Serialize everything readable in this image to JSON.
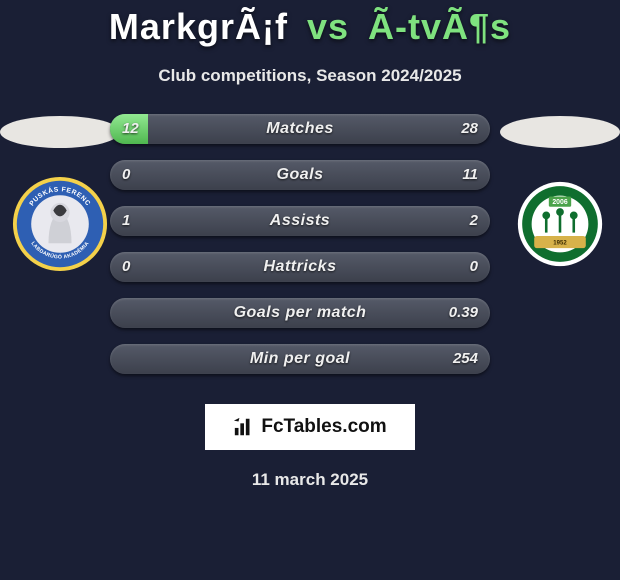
{
  "background_color": "#1a1f35",
  "title": {
    "player1": "MarkgrÃ¡f",
    "vs": "vs",
    "player2": "Ã-tvÃ¶s",
    "player1_color": "#ffffff",
    "player2_color": "#7fe27f",
    "vs_color": "#7fe27f",
    "fontsize": 36
  },
  "subtitle": "Club competitions, Season 2024/2025",
  "left_team": {
    "flag_color": "#e8e6e2",
    "crest": {
      "outer_ring": "#f4d14a",
      "inner_ring": "#2e5fb3",
      "center": "#e9e9ef",
      "text_top": "PUSKÁS FERENC",
      "text_bottom": "LABDARÚGÓ AKADÉMIA"
    }
  },
  "right_team": {
    "flag_color": "#e8e6e2",
    "crest": {
      "outer_ring": "#ffffff",
      "mid_ring": "#0f6e2e",
      "inner": "#ffffff",
      "year_badge": "2006",
      "year_badge_bg": "#4aa34a",
      "bottom_band": "#d7b24a"
    }
  },
  "stats": {
    "bar_bg_gradient": [
      "#555a68",
      "#3c404c"
    ],
    "fill_gradient": [
      "#92e892",
      "#4fb74f"
    ],
    "label_color": "#f0f0f0",
    "label_fontsize": 16,
    "value_fontsize": 15,
    "rows": [
      {
        "label": "Matches",
        "left": "12",
        "right": "28",
        "left_fill_pct": 10,
        "right_fill_pct": 0
      },
      {
        "label": "Goals",
        "left": "0",
        "right": "11",
        "left_fill_pct": 0,
        "right_fill_pct": 0
      },
      {
        "label": "Assists",
        "left": "1",
        "right": "2",
        "left_fill_pct": 0,
        "right_fill_pct": 0
      },
      {
        "label": "Hattricks",
        "left": "0",
        "right": "0",
        "left_fill_pct": 0,
        "right_fill_pct": 0
      },
      {
        "label": "Goals per match",
        "left": "",
        "right": "0.39",
        "left_fill_pct": 0,
        "right_fill_pct": 0
      },
      {
        "label": "Min per goal",
        "left": "",
        "right": "254",
        "left_fill_pct": 0,
        "right_fill_pct": 0
      }
    ]
  },
  "footer_brand": "FcTables.com",
  "date_line": "11 march 2025"
}
